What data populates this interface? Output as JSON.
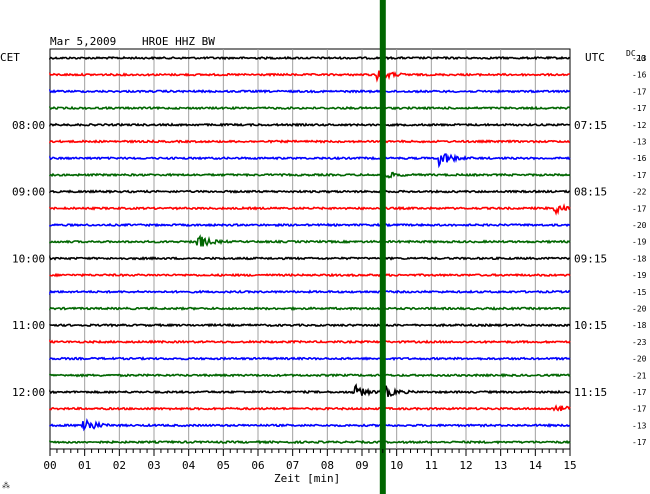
{
  "chart_data": {
    "type": "line",
    "header": {
      "date": "Mar 5,2009",
      "station": "HROE HHZ BW"
    },
    "left_label": "CET",
    "right_label": "UTC",
    "dc_label": "DC",
    "dc_sub": "20",
    "xlabel": "Zeit [min]",
    "xlim": [
      0,
      15
    ],
    "x_ticks": [
      "00",
      "01",
      "02",
      "03",
      "04",
      "05",
      "06",
      "07",
      "08",
      "09",
      "10",
      "11",
      "12",
      "13",
      "14",
      "15"
    ],
    "row_count": 24,
    "row_colors": [
      "#000000",
      "#ff0000",
      "#0000ff",
      "#006600"
    ],
    "time_labels": [
      {
        "row": 4,
        "cet": "08:00",
        "utc": "07:15"
      },
      {
        "row": 8,
        "cet": "09:00",
        "utc": "08:15"
      },
      {
        "row": 12,
        "cet": "10:00",
        "utc": "09:15"
      },
      {
        "row": 16,
        "cet": "11:00",
        "utc": "10:15"
      },
      {
        "row": 20,
        "cet": "12:00",
        "utc": "11:15"
      }
    ],
    "dc_values": [
      -13,
      -16,
      -17,
      -17,
      -12,
      -13,
      -16,
      -17,
      -22,
      -17,
      -20,
      -19,
      -18,
      -19,
      -15,
      -20,
      -18,
      -23,
      -20,
      -21,
      -17,
      -17,
      -13,
      -17
    ],
    "events": [
      {
        "row": 1,
        "minute": 9.5,
        "amp": 2.2
      },
      {
        "row": 6,
        "minute": 11.3,
        "amp": 2.4
      },
      {
        "row": 7,
        "minute": 9.6,
        "amp": 1.5
      },
      {
        "row": 9,
        "minute": 14.6,
        "amp": 1.6
      },
      {
        "row": 11,
        "minute": 4.3,
        "amp": 2.2
      },
      {
        "row": 20,
        "minute": 8.8,
        "amp": 2.2
      },
      {
        "row": 20,
        "minute": 9.6,
        "amp": 2.6
      },
      {
        "row": 21,
        "minute": 14.6,
        "amp": 1.4
      },
      {
        "row": 22,
        "minute": 1.0,
        "amp": 2.8
      }
    ],
    "marker": {
      "minute": 9.6,
      "color": "#006600"
    },
    "footer_mark": "⁂"
  }
}
